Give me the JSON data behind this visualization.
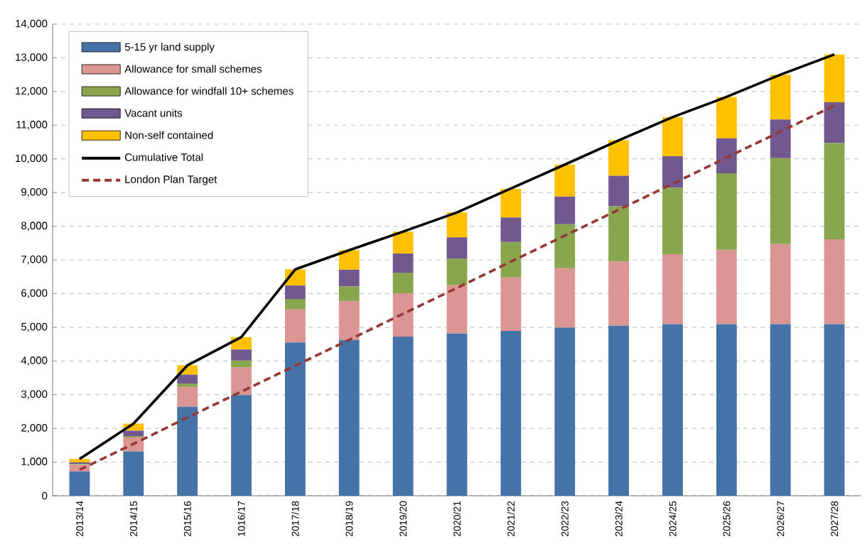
{
  "chart_data": {
    "type": "bar",
    "stacked": true,
    "grid": "y",
    "legend": "top left",
    "categories": [
      "2013/14",
      "2014/15",
      "2015/16",
      "1016/17",
      "2017/18",
      "2018/19",
      "2019/20",
      "2020/21",
      "2021/22",
      "2022/23",
      "2023/24",
      "2024/25",
      "2025/26",
      "2026/27",
      "2027/28"
    ],
    "ylim": [
      0,
      14000
    ],
    "yticks": [
      0,
      {
        "value": 1000,
        "label": "1,000"
      },
      {
        "value": 2000,
        "label": "2,000"
      },
      {
        "value": 3000,
        "label": "3,000"
      },
      {
        "value": 4000,
        "label": "4,000"
      },
      {
        "value": 5000,
        "label": "5,000"
      },
      {
        "value": 6000,
        "label": "6,000"
      },
      {
        "value": 7000,
        "label": "7,000"
      },
      {
        "value": 8000,
        "label": "8,000"
      },
      {
        "value": 9000,
        "label": "9,000"
      },
      {
        "value": 10000,
        "label": "10,000"
      },
      {
        "value": 11000,
        "label": "11,000"
      },
      {
        "value": 12000,
        "label": "12,000"
      },
      {
        "value": 13000,
        "label": "13,000"
      },
      {
        "value": 14000,
        "label": "14,000"
      }
    ],
    "series": [
      {
        "name": "5-15 yr land supply",
        "color": "#4572a7",
        "values": [
          720,
          1320,
          2640,
          2990,
          4550,
          4620,
          4720,
          4820,
          4890,
          4990,
          5050,
          5090,
          5090,
          5090,
          5090
        ]
      },
      {
        "name": "Allowance for small schemes",
        "color": "#db9694",
        "values": [
          200,
          410,
          590,
          820,
          980,
          1160,
          1290,
          1430,
          1590,
          1760,
          1900,
          2080,
          2210,
          2380,
          2520
        ]
      },
      {
        "name": "Allowance for windfall 10+ schemes",
        "color": "#89a54e",
        "values": [
          20,
          40,
          100,
          200,
          310,
          430,
          610,
          780,
          1050,
          1310,
          1640,
          1970,
          2270,
          2550,
          2860
        ]
      },
      {
        "name": "Vacant units",
        "color": "#71588f",
        "values": [
          50,
          160,
          265,
          330,
          400,
          500,
          570,
          640,
          730,
          820,
          910,
          940,
          1040,
          1150,
          1210
        ]
      },
      {
        "name": "Non-self contained",
        "color": "#ffc000",
        "values": [
          100,
          210,
          280,
          370,
          480,
          580,
          650,
          740,
          850,
          950,
          1050,
          1160,
          1230,
          1330,
          1420
        ]
      },
      {
        "name": "Cumulative Total",
        "type": "line",
        "color": "#000000",
        "line_style": "solid",
        "values": [
          1090,
          2140,
          3870,
          4710,
          6720,
          7290,
          7840,
          8410,
          9120,
          9830,
          10550,
          11240,
          11840,
          12500,
          13100
        ]
      },
      {
        "name": "London Plan Target",
        "type": "line",
        "color": "#953735",
        "line_style": "dashed",
        "values": [
          770,
          1540,
          2320,
          3090,
          3860,
          4630,
          5400,
          6170,
          6950,
          7720,
          8490,
          9260,
          10040,
          10810,
          11580
        ]
      }
    ]
  }
}
